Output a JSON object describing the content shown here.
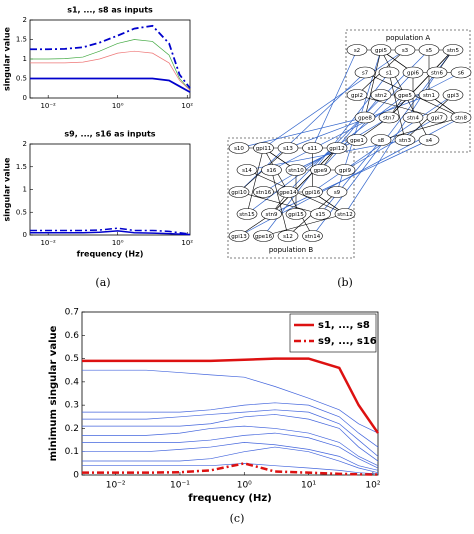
{
  "chart_data": [
    {
      "type": "line",
      "title": "s1, ..., s8 as inputs",
      "ylabel": "singular value",
      "log_x": true,
      "x": [
        0.003,
        0.01,
        0.03,
        0.1,
        0.3,
        1,
        3,
        10,
        30,
        60,
        120
      ],
      "xlim": [
        0.003,
        120
      ],
      "xticks": [
        {
          "value": 0.01,
          "label": "10⁻²"
        },
        {
          "value": 1,
          "label": "10⁰"
        },
        {
          "value": 100,
          "label": "10²"
        }
      ],
      "ylim": [
        0,
        2
      ],
      "yticks": [
        0,
        0.5,
        1,
        1.5,
        2
      ],
      "series": [
        {
          "color": "#0000cc",
          "dash": "dashdot",
          "width": 1.8,
          "values": [
            1.25,
            1.25,
            1.26,
            1.3,
            1.42,
            1.6,
            1.78,
            1.85,
            1.4,
            0.6,
            0.25
          ]
        },
        {
          "color": "#44aa44",
          "dash": "solid",
          "width": 0.7,
          "values": [
            1.0,
            1.0,
            1.01,
            1.05,
            1.2,
            1.4,
            1.5,
            1.45,
            1.1,
            0.5,
            0.2
          ]
        },
        {
          "color": "#ee7777",
          "dash": "solid",
          "width": 0.7,
          "values": [
            0.9,
            0.9,
            0.9,
            0.92,
            1.0,
            1.15,
            1.2,
            1.15,
            0.9,
            0.45,
            0.2
          ]
        },
        {
          "color": "#0000cc",
          "dash": "solid",
          "width": 1.8,
          "values": [
            0.5,
            0.5,
            0.5,
            0.5,
            0.5,
            0.5,
            0.5,
            0.5,
            0.45,
            0.3,
            0.15
          ]
        }
      ]
    },
    {
      "type": "line",
      "title": "s9, ..., s16 as inputs",
      "ylabel": "singular value",
      "xlabel": "frequency (Hz)",
      "log_x": true,
      "x": [
        0.003,
        0.01,
        0.03,
        0.1,
        0.3,
        1,
        3,
        10,
        30,
        60,
        120
      ],
      "xlim": [
        0.003,
        120
      ],
      "xticks": [
        {
          "value": 0.01,
          "label": "10⁻²"
        },
        {
          "value": 1,
          "label": "10⁰"
        },
        {
          "value": 100,
          "label": "10²"
        }
      ],
      "ylim": [
        0,
        2
      ],
      "yticks": [
        0,
        0.5,
        1,
        1.5,
        2
      ],
      "series": [
        {
          "color": "#0000cc",
          "dash": "dashdot",
          "width": 1.5,
          "values": [
            0.1,
            0.1,
            0.1,
            0.1,
            0.11,
            0.15,
            0.1,
            0.1,
            0.08,
            0.05,
            0.02
          ]
        },
        {
          "color": "#0000cc",
          "dash": "solid",
          "width": 1.5,
          "values": [
            0.05,
            0.05,
            0.05,
            0.05,
            0.06,
            0.09,
            0.05,
            0.04,
            0.03,
            0.02,
            0.01
          ]
        }
      ]
    },
    {
      "type": "line",
      "ylabel": "minimum singular value",
      "xlabel": "frequency (Hz)",
      "log_x": true,
      "legend": "top-right",
      "x": [
        0.003,
        0.01,
        0.03,
        0.1,
        0.3,
        1,
        3,
        10,
        30,
        60,
        120
      ],
      "xlim": [
        0.003,
        120
      ],
      "xticks": [
        {
          "value": 0.01,
          "label": "10⁻²"
        },
        {
          "value": 0.1,
          "label": "10⁻¹"
        },
        {
          "value": 1,
          "label": "10⁰"
        },
        {
          "value": 10,
          "label": "10¹"
        },
        {
          "value": 100,
          "label": "10²"
        }
      ],
      "ylim": [
        0,
        0.7
      ],
      "yticks": [
        0,
        0.1,
        0.2,
        0.3,
        0.4,
        0.5,
        0.6,
        0.7
      ],
      "series": [
        {
          "color": "#4466dd",
          "dash": "solid",
          "width": 0.7,
          "values": [
            0.45,
            0.45,
            0.45,
            0.44,
            0.43,
            0.42,
            0.38,
            0.33,
            0.28,
            0.22,
            0.18
          ]
        },
        {
          "color": "#4466dd",
          "dash": "solid",
          "width": 0.7,
          "values": [
            0.27,
            0.27,
            0.27,
            0.27,
            0.28,
            0.3,
            0.31,
            0.3,
            0.25,
            0.18,
            0.12
          ]
        },
        {
          "color": "#4466dd",
          "dash": "solid",
          "width": 0.7,
          "values": [
            0.24,
            0.24,
            0.24,
            0.25,
            0.26,
            0.27,
            0.28,
            0.27,
            0.22,
            0.15,
            0.08
          ]
        },
        {
          "color": "#4466dd",
          "dash": "solid",
          "width": 0.7,
          "values": [
            0.21,
            0.21,
            0.21,
            0.21,
            0.22,
            0.25,
            0.26,
            0.24,
            0.2,
            0.12,
            0.06
          ]
        },
        {
          "color": "#4466dd",
          "dash": "solid",
          "width": 0.7,
          "values": [
            0.17,
            0.17,
            0.17,
            0.18,
            0.2,
            0.21,
            0.2,
            0.18,
            0.14,
            0.08,
            0.04
          ]
        },
        {
          "color": "#4466dd",
          "dash": "solid",
          "width": 0.7,
          "values": [
            0.14,
            0.14,
            0.14,
            0.14,
            0.15,
            0.17,
            0.18,
            0.16,
            0.12,
            0.07,
            0.03
          ]
        },
        {
          "color": "#4466dd",
          "dash": "solid",
          "width": 0.7,
          "values": [
            0.1,
            0.1,
            0.1,
            0.11,
            0.12,
            0.14,
            0.13,
            0.11,
            0.08,
            0.04,
            0.02
          ]
        },
        {
          "color": "#4466dd",
          "dash": "solid",
          "width": 0.7,
          "values": [
            0.06,
            0.06,
            0.06,
            0.06,
            0.07,
            0.1,
            0.12,
            0.1,
            0.06,
            0.03,
            0.01
          ]
        },
        {
          "color": "#4466dd",
          "dash": "solid",
          "width": 0.7,
          "values": [
            0.04,
            0.04,
            0.04,
            0.04,
            0.04,
            0.05,
            0.04,
            0.03,
            0.02,
            0.01,
            0.005
          ]
        },
        {
          "name": "s1, ..., s8",
          "color": "#dd1111",
          "dash": "solid",
          "width": 2.5,
          "values": [
            0.49,
            0.49,
            0.49,
            0.49,
            0.49,
            0.495,
            0.5,
            0.5,
            0.46,
            0.3,
            0.18
          ]
        },
        {
          "name": "s9, ..., s16",
          "color": "#dd1111",
          "dash": "dashdot",
          "width": 2.5,
          "values": [
            0.01,
            0.01,
            0.01,
            0.012,
            0.02,
            0.05,
            0.015,
            0.01,
            0.005,
            0.003,
            0.002
          ]
        }
      ]
    }
  ],
  "diagram": {
    "populations": [
      {
        "label": "population A",
        "nodes": [
          "s2",
          "gpi5",
          "s3",
          "s5",
          "stn5",
          "s7",
          "s1",
          "gpi6",
          "stn6",
          "s6",
          "gpi2",
          "stn2",
          "gpe5",
          "stn1",
          "gpi3",
          "gpe8",
          "stn7",
          "stn4",
          "gpi7",
          "stn8",
          "gpe1",
          "s8",
          "stn3",
          "s4"
        ]
      },
      {
        "label": "population B",
        "nodes": [
          "s10",
          "gpi11",
          "s13",
          "s11",
          "gpi12",
          "s14",
          "s16",
          "stn10",
          "gpe9",
          "gpi9",
          "gpi10",
          "stn16",
          "gpe14",
          "gpi16",
          "s9",
          "stn15",
          "stn9",
          "gpi15",
          "s15",
          "stn12",
          "gpi13",
          "gpe16",
          "s12",
          "stn14"
        ]
      }
    ]
  },
  "captions": [
    "(a)",
    "(b)",
    "(c)"
  ]
}
